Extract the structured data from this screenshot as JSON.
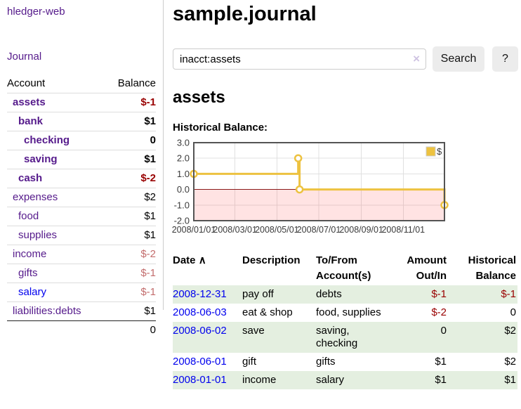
{
  "sidebar": {
    "app_title": "hledger-web",
    "journal_label": "Journal",
    "accounts_table": {
      "headers": {
        "account": "Account",
        "balance": "Balance"
      },
      "rows": [
        {
          "name": "assets",
          "balance": "$-1",
          "indent": 1,
          "bold": true,
          "neg": "strong",
          "link": "purple"
        },
        {
          "name": "bank",
          "balance": "$1",
          "indent": 2,
          "bold": true,
          "neg": "none",
          "link": "purple"
        },
        {
          "name": "checking",
          "balance": "0",
          "indent": 3,
          "bold": true,
          "neg": "none",
          "link": "purple"
        },
        {
          "name": "saving",
          "balance": "$1",
          "indent": 3,
          "bold": true,
          "neg": "none",
          "link": "purple"
        },
        {
          "name": "cash",
          "balance": "$-2",
          "indent": 2,
          "bold": true,
          "neg": "strong",
          "link": "purple"
        },
        {
          "name": "expenses",
          "balance": "$2",
          "indent": 1,
          "bold": false,
          "neg": "none",
          "link": "purple"
        },
        {
          "name": "food",
          "balance": "$1",
          "indent": 2,
          "bold": false,
          "neg": "none",
          "link": "purple"
        },
        {
          "name": "supplies",
          "balance": "$1",
          "indent": 2,
          "bold": false,
          "neg": "none",
          "link": "purple"
        },
        {
          "name": "income",
          "balance": "$-2",
          "indent": 1,
          "bold": false,
          "neg": "muted",
          "link": "purple"
        },
        {
          "name": "gifts",
          "balance": "$-1",
          "indent": 2,
          "bold": false,
          "neg": "muted",
          "link": "purple"
        },
        {
          "name": "salary",
          "balance": "$-1",
          "indent": 2,
          "bold": false,
          "neg": "muted",
          "link": "blue"
        },
        {
          "name": "liabilities:debts",
          "balance": "$1",
          "indent": 1,
          "bold": false,
          "neg": "none",
          "link": "purple"
        }
      ],
      "total": "0"
    }
  },
  "main": {
    "title": "sample.journal",
    "search": {
      "value": "inacct:assets",
      "clear_icon": "×",
      "button_label": "Search",
      "help_label": "?"
    },
    "account_heading": "assets",
    "chart_label": "Historical Balance:",
    "register_table": {
      "headers": {
        "date": "Date",
        "sort_indicator": "∧",
        "description": "Description",
        "accounts": "To/From Account(s)",
        "amount": "Amount Out/In",
        "balance": "Historical Balance"
      },
      "rows": [
        {
          "date": "2008-12-31",
          "description": "pay off",
          "accounts": "debts",
          "amount": "$-1",
          "amount_neg": true,
          "balance": "$-1",
          "balance_neg": true,
          "stripe": true
        },
        {
          "date": "2008-06-03",
          "description": "eat & shop",
          "accounts": "food, supplies",
          "amount": "$-2",
          "amount_neg": true,
          "balance": "0",
          "balance_neg": false,
          "stripe": false
        },
        {
          "date": "2008-06-02",
          "description": "save",
          "accounts": "saving, checking",
          "amount": "0",
          "amount_neg": false,
          "balance": "$2",
          "balance_neg": false,
          "stripe": true
        },
        {
          "date": "2008-06-01",
          "description": "gift",
          "accounts": "gifts",
          "amount": "$1",
          "amount_neg": false,
          "balance": "$2",
          "balance_neg": false,
          "stripe": false
        },
        {
          "date": "2008-01-01",
          "description": "income",
          "accounts": "salary",
          "amount": "$1",
          "amount_neg": false,
          "balance": "$1",
          "balance_neg": false,
          "stripe": true
        }
      ]
    }
  },
  "chart_data": {
    "type": "line",
    "step": true,
    "title": "Historical Balance",
    "series": [
      {
        "name": "$",
        "color": "#EDC240",
        "x": [
          "2008-01-01",
          "2008-06-01",
          "2008-06-03",
          "2008-12-31"
        ],
        "y": [
          1,
          2,
          0,
          -1
        ]
      }
    ],
    "x_ticks": [
      "2008/01/01",
      "2008/03/01",
      "2008/05/01",
      "2008/07/01",
      "2008/09/01",
      "2008/11/01"
    ],
    "y_ticks": [
      3.0,
      2.0,
      1.0,
      0.0,
      -1.0,
      -2.0
    ],
    "xlim": [
      "2008-01-01",
      "2008-12-31"
    ],
    "ylim": [
      -2,
      3
    ],
    "grid": true,
    "legend_position": "top-right",
    "colors": {
      "line": "#EDC240",
      "marker_fill": "#ffffff",
      "negative_region": "rgba(255,80,80,0.16)",
      "zero_line": "#8b1a1a",
      "grid_line": "#e0e0e0",
      "border": "#545454",
      "tick_text": "#3a3a3a"
    }
  }
}
